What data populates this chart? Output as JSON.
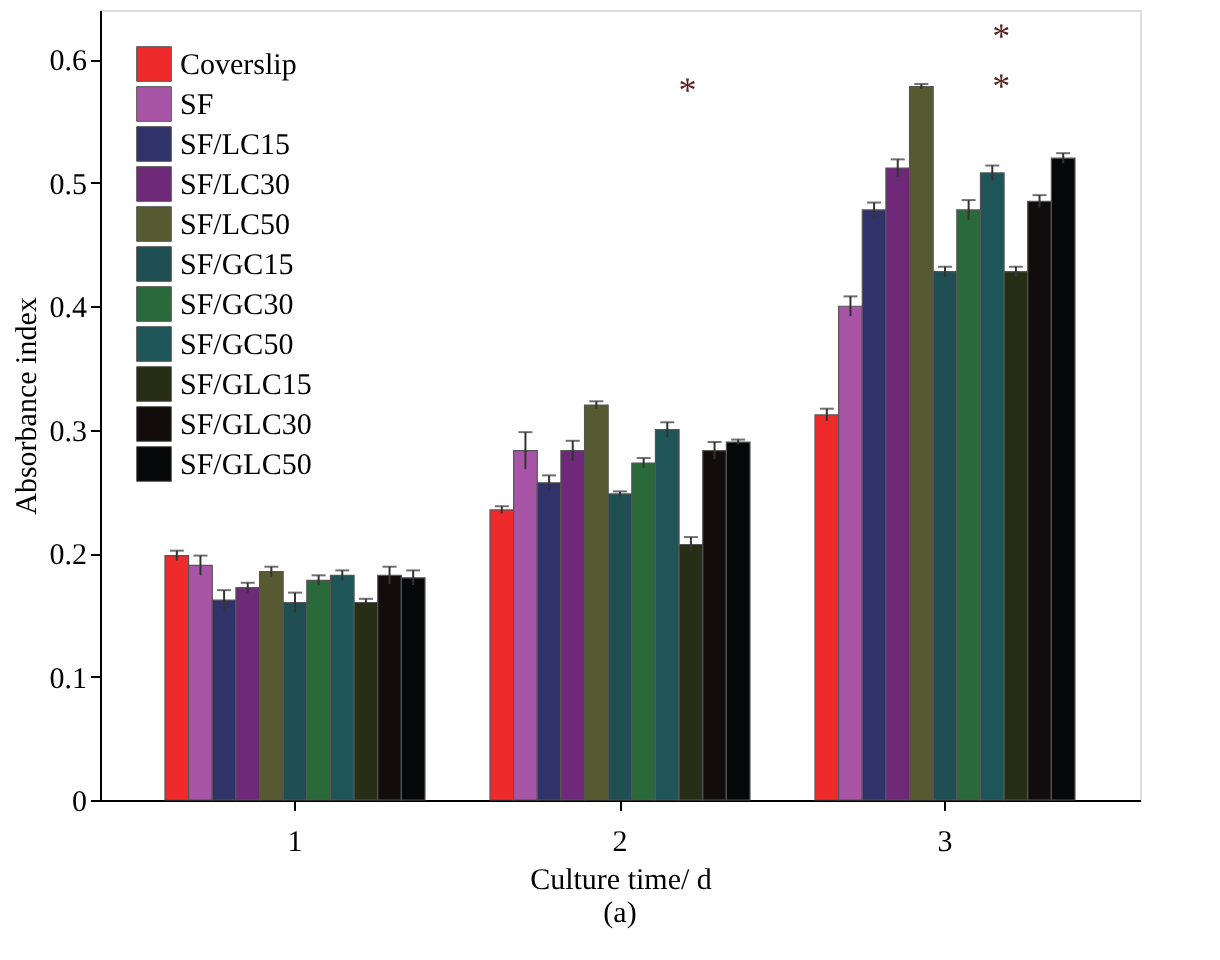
{
  "chart_data": {
    "type": "bar",
    "xlabel": "Culture time/ d",
    "ylabel": "Absorbance index",
    "categories": [
      "1",
      "2",
      "3"
    ],
    "ylim": [
      0,
      0.64
    ],
    "yticks": [
      0,
      0.1,
      0.2,
      0.3,
      0.4,
      0.5,
      0.6
    ],
    "legend": "top left",
    "grid": false,
    "series": [
      {
        "name": "Coverslip",
        "color": "#ee2a2a",
        "values": [
          0.198,
          0.235,
          0.312
        ],
        "errors": [
          0.004,
          0.003,
          0.005
        ]
      },
      {
        "name": "SF",
        "color": "#a855a8",
        "values": [
          0.19,
          0.283,
          0.4
        ],
        "errors": [
          0.008,
          0.015,
          0.008
        ]
      },
      {
        "name": "SF/LC15",
        "color": "#30336a",
        "values": [
          0.162,
          0.257,
          0.478
        ],
        "errors": [
          0.008,
          0.006,
          0.006
        ]
      },
      {
        "name": "SF/LC30",
        "color": "#6e2a78",
        "values": [
          0.172,
          0.283,
          0.512
        ],
        "errors": [
          0.004,
          0.008,
          0.007
        ]
      },
      {
        "name": "SF/LC50",
        "color": "#575a30",
        "values": [
          0.185,
          0.32,
          0.578
        ],
        "errors": [
          0.004,
          0.003,
          0.002
        ]
      },
      {
        "name": "SF/GC15",
        "color": "#1f4f52",
        "values": [
          0.16,
          0.248,
          0.428
        ],
        "errors": [
          0.008,
          0.002,
          0.004
        ]
      },
      {
        "name": "SF/GC30",
        "color": "#2a6a3a",
        "values": [
          0.178,
          0.273,
          0.478
        ],
        "errors": [
          0.004,
          0.004,
          0.008
        ]
      },
      {
        "name": "SF/GC50",
        "color": "#1e5558",
        "values": [
          0.182,
          0.3,
          0.508
        ],
        "errors": [
          0.004,
          0.006,
          0.006
        ]
      },
      {
        "name": "SF/GLC15",
        "color": "#262e16",
        "values": [
          0.16,
          0.207,
          0.428
        ],
        "errors": [
          0.003,
          0.006,
          0.004
        ]
      },
      {
        "name": "SF/GLC30",
        "color": "#120c0c",
        "values": [
          0.182,
          0.283,
          0.485
        ],
        "errors": [
          0.007,
          0.007,
          0.005
        ]
      },
      {
        "name": "SF/GLC50",
        "color": "#050808",
        "values": [
          0.18,
          0.29,
          0.52
        ],
        "errors": [
          0.006,
          0.002,
          0.004
        ]
      }
    ],
    "annotations": [
      "*",
      "*",
      "*",
      "(a)"
    ]
  }
}
